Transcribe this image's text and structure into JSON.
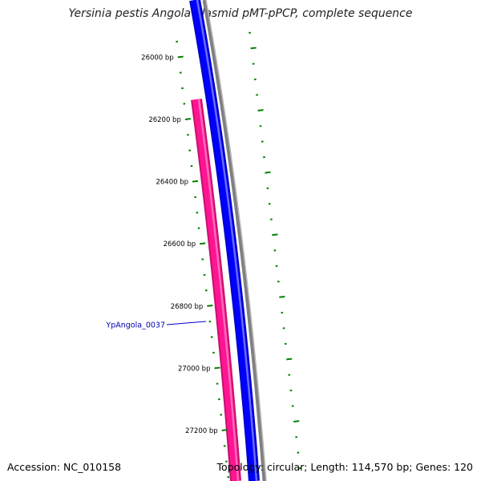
{
  "title": "Yersinia pestis Angola plasmid pMT-pPCP, complete sequence",
  "footer": {
    "accession": "Accession: NC_010158",
    "summary": "Topology: circular; Length: 114,570 bp; Genes: 120"
  },
  "ticks": [
    {
      "label": "26000 bp"
    },
    {
      "label": "26200 bp"
    },
    {
      "label": "26400 bp"
    },
    {
      "label": "26600 bp"
    },
    {
      "label": "26800 bp"
    },
    {
      "label": "27000 bp"
    },
    {
      "label": "27200 bp"
    }
  ],
  "gene": {
    "label": "YpAngola_0037"
  },
  "colors": {
    "backbone": "#808080",
    "forward_cds": "#0000ff",
    "reverse_cds": "#ff1493",
    "ticks": "#008000",
    "gene_label": "#0000aa"
  }
}
